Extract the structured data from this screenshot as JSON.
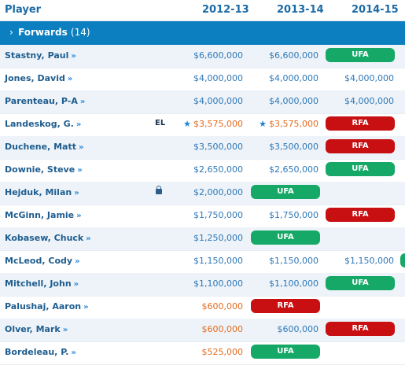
{
  "header": {
    "player": "Player",
    "y1": "2012-13",
    "y2": "2013-14",
    "y3": "2014-15"
  },
  "section": {
    "label": "Forwards",
    "count": "(14)"
  },
  "colors": {
    "ufa": "#15a867",
    "rfa": "#c80f11",
    "salary_orange": "#e46b1f",
    "salary_blue": "#2f78b7",
    "header_bar": "#0b7fc0"
  },
  "rows": [
    {
      "name": "Stastny, Paul",
      "c1": "$6,600,000",
      "c2": "$6,600,000",
      "c3": "UFA"
    },
    {
      "name": "Jones, David",
      "c1": "$4,000,000",
      "c2": "$4,000,000",
      "c3": "$4,000,000"
    },
    {
      "name": "Parenteau, P-A",
      "c1": "$4,000,000",
      "c2": "$4,000,000",
      "c3": "$4,000,000"
    },
    {
      "name": "Landeskog, G.",
      "tag": "EL",
      "c1": "$3,575,000",
      "c2": "$3,575,000",
      "c3": "RFA"
    },
    {
      "name": "Duchene, Matt",
      "c1": "$3,500,000",
      "c2": "$3,500,000",
      "c3": "RFA"
    },
    {
      "name": "Downie, Steve",
      "c1": "$2,650,000",
      "c2": "$2,650,000",
      "c3": "UFA"
    },
    {
      "name": "Hejduk, Milan",
      "lock": "lock-icon",
      "c1": "$2,000,000",
      "c2": "UFA",
      "c3": ""
    },
    {
      "name": "McGinn, Jamie",
      "c1": "$1,750,000",
      "c2": "$1,750,000",
      "c3": "RFA"
    },
    {
      "name": "Kobasew, Chuck",
      "c1": "$1,250,000",
      "c2": "UFA",
      "c3": ""
    },
    {
      "name": "McLeod, Cody",
      "c1": "$1,150,000",
      "c2": "$1,150,000",
      "c3": "$1,150,000"
    },
    {
      "name": "Mitchell, John",
      "c1": "$1,100,000",
      "c2": "$1,100,000",
      "c3": "UFA"
    },
    {
      "name": "Palushaj, Aaron",
      "c1": "$600,000",
      "c2": "RFA",
      "c3": ""
    },
    {
      "name": "Olver, Mark",
      "c1": "$600,000",
      "c2": "$600,000",
      "c3": "RFA"
    },
    {
      "name": "Bordeleau, P.",
      "c1": "$525,000",
      "c2": "UFA",
      "c3": ""
    }
  ]
}
